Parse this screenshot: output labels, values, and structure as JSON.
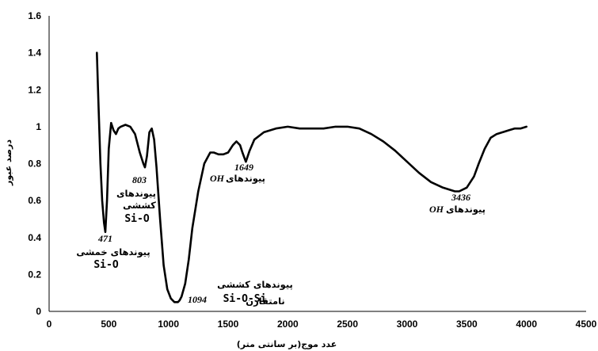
{
  "chart_data": {
    "type": "line",
    "title": "",
    "xlabel": "عدد موج(بر سانتی متر)",
    "ylabel": "درصد عبور",
    "xlim": [
      0,
      4500
    ],
    "ylim": [
      0,
      1.6
    ],
    "x_ticks": [
      "0",
      "500",
      "1000",
      "1500",
      "2000",
      "2500",
      "3000",
      "3500",
      "4000",
      "4500"
    ],
    "y_ticks": [
      "0",
      "0.2",
      "0.4",
      "0.6",
      "0.8",
      "1",
      "1.2",
      "1.4",
      "1.6"
    ],
    "grid": false,
    "legend": "none",
    "line_color": "#000000",
    "series": [
      {
        "x": [
          400,
          415,
          430,
          445,
          460,
          471,
          485,
          500,
          520,
          540,
          560,
          580,
          600,
          640,
          680,
          720,
          760,
          790,
          803,
          820,
          840,
          860,
          880,
          900,
          930,
          960,
          990,
          1020,
          1050,
          1080,
          1094,
          1110,
          1140,
          1170,
          1200,
          1250,
          1300,
          1350,
          1380,
          1420,
          1460,
          1500,
          1540,
          1570,
          1600,
          1620,
          1649,
          1680,
          1720,
          1800,
          1900,
          2000,
          2100,
          2200,
          2300,
          2400,
          2500,
          2600,
          2700,
          2800,
          2900,
          3000,
          3100,
          3200,
          3300,
          3400,
          3436,
          3500,
          3560,
          3600,
          3650,
          3700,
          3750,
          3800,
          3850,
          3900,
          3950,
          4000
        ],
        "y": [
          1.4,
          1.1,
          0.8,
          0.6,
          0.48,
          0.43,
          0.6,
          0.88,
          1.02,
          0.98,
          0.96,
          0.99,
          1.0,
          1.01,
          1.0,
          0.96,
          0.86,
          0.8,
          0.78,
          0.84,
          0.97,
          0.99,
          0.93,
          0.78,
          0.5,
          0.25,
          0.12,
          0.07,
          0.05,
          0.05,
          0.06,
          0.08,
          0.15,
          0.28,
          0.45,
          0.65,
          0.8,
          0.86,
          0.86,
          0.85,
          0.85,
          0.86,
          0.9,
          0.92,
          0.9,
          0.86,
          0.81,
          0.87,
          0.93,
          0.97,
          0.99,
          1.0,
          0.99,
          0.99,
          0.99,
          1.0,
          1.0,
          0.99,
          0.96,
          0.92,
          0.87,
          0.81,
          0.75,
          0.7,
          0.67,
          0.65,
          0.65,
          0.67,
          0.73,
          0.8,
          0.88,
          0.94,
          0.96,
          0.97,
          0.98,
          0.99,
          0.99,
          1.0
        ]
      }
    ],
    "annotations": [
      {
        "id": "a471",
        "lines": [
          "471",
          "پیوندهای خمشی",
          "Si-O"
        ]
      },
      {
        "id": "a803",
        "lines": [
          "803",
          "پیوندهای",
          "کششی",
          "Si-O"
        ]
      },
      {
        "id": "a1094",
        "lines": [
          "پیوندهای کششی",
          "Si-O-Si",
          "1094",
          "نامتقارن"
        ]
      },
      {
        "id": "a1649",
        "lines": [
          "1649",
          "پیوندهای",
          "OH"
        ]
      },
      {
        "id": "a3436",
        "lines": [
          "3436",
          "پیوندهای",
          "OH"
        ]
      }
    ]
  }
}
